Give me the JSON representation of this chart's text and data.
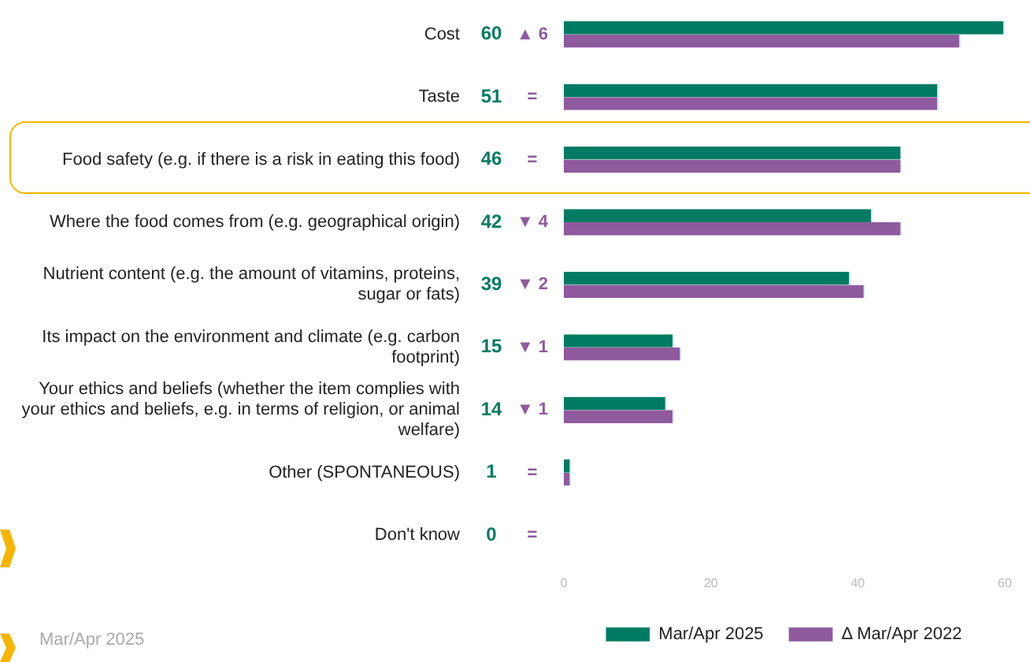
{
  "chart_data": {
    "type": "bar",
    "orientation": "horizontal",
    "categories": [
      "Cost",
      "Taste",
      "Food safety (e.g. if there is a risk in eating this food)",
      "Where the food comes from (e.g. geographical origin)",
      "Nutrient content (e.g. the amount of vitamins, proteins, sugar or fats)",
      "Its impact on the environment and climate (e.g. carbon footprint)",
      "Your ethics and beliefs (whether the item complies with your ethics and beliefs, e.g. in terms of religion, or animal welfare)",
      "Other (SPONTANEOUS)",
      "Don't know"
    ],
    "series": [
      {
        "name": "Mar/Apr 2025",
        "color": "#007b63",
        "values": [
          60,
          51,
          46,
          42,
          39,
          15,
          14,
          1,
          0
        ],
        "value_labels": [
          "60",
          "51",
          "46",
          "42",
          "39",
          "15",
          "14",
          "1",
          "0"
        ]
      },
      {
        "name": "Δ Mar/Apr 2022",
        "color": "#8f5a9e",
        "values": [
          54,
          51,
          46,
          46,
          41,
          16,
          15,
          1,
          0
        ]
      }
    ],
    "xlim": [
      0,
      60
    ],
    "xticks": [
      0,
      20,
      40,
      60
    ],
    "grid": false,
    "legend": "bottom",
    "annotations": [
      "Mar/Apr 2025",
      "▲ 6",
      "=",
      "=",
      "▼ 4",
      "▼ 2",
      "▼ 1",
      "▼ 1",
      "=",
      "="
    ]
  }
}
